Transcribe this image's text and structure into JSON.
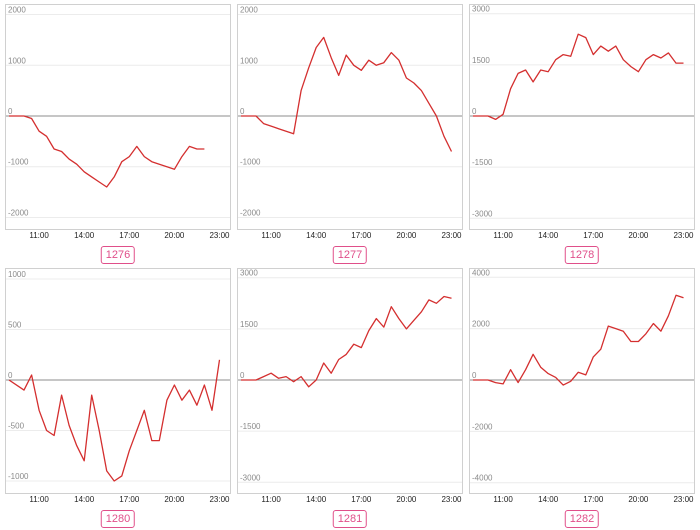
{
  "chart_data": [
    {
      "type": "line",
      "label": "1276",
      "yticks": [
        2000,
        1000,
        0,
        -1000,
        -2000
      ],
      "ylim": [
        -2050,
        2050
      ],
      "xticks": [
        "11:00",
        "14:00",
        "17:00",
        "20:00",
        "23:00"
      ],
      "x": [
        "09:00",
        "10:00",
        "10:30",
        "11:00",
        "11:30",
        "12:00",
        "12:30",
        "13:00",
        "13:30",
        "14:00",
        "14:30",
        "15:00",
        "15:30",
        "16:00",
        "16:30",
        "17:00",
        "17:30",
        "18:00",
        "18:30",
        "19:00",
        "19:30",
        "20:00",
        "20:30",
        "21:00",
        "21:30",
        "22:00"
      ],
      "series": [
        {
          "values": [
            0,
            0,
            -50,
            -300,
            -400,
            -650,
            -700,
            -850,
            -950,
            -1100,
            -1200,
            -1300,
            -1400,
            -1200,
            -900,
            -800,
            -600,
            -800,
            -900,
            -950,
            -1000,
            -1050,
            -800,
            -600,
            -650,
            -650
          ]
        }
      ]
    },
    {
      "type": "line",
      "label": "1277",
      "yticks": [
        2000,
        1000,
        0,
        -1000,
        -2000
      ],
      "ylim": [
        -2050,
        2050
      ],
      "xticks": [
        "11:00",
        "14:00",
        "17:00",
        "20:00",
        "23:00"
      ],
      "x": [
        "09:00",
        "10:00",
        "10:30",
        "11:00",
        "11:30",
        "12:00",
        "12:30",
        "13:00",
        "13:30",
        "14:00",
        "14:30",
        "15:00",
        "15:30",
        "16:00",
        "16:30",
        "17:00",
        "17:30",
        "18:00",
        "18:30",
        "19:00",
        "19:30",
        "20:00",
        "20:30",
        "21:00",
        "21:30",
        "22:00",
        "22:30",
        "23:00"
      ],
      "series": [
        {
          "values": [
            0,
            0,
            -150,
            -200,
            -250,
            -300,
            -350,
            500,
            950,
            1350,
            1550,
            1150,
            800,
            1200,
            1000,
            900,
            1100,
            1000,
            1050,
            1250,
            1100,
            750,
            650,
            500,
            250,
            0,
            -400,
            -700
          ]
        }
      ]
    },
    {
      "type": "line",
      "label": "1278",
      "yticks": [
        3000,
        1500,
        0,
        -1500,
        -3000
      ],
      "ylim": [
        -3050,
        3050
      ],
      "xticks": [
        "11:00",
        "14:00",
        "17:00",
        "20:00",
        "23:00"
      ],
      "x": [
        "09:00",
        "10:00",
        "10:30",
        "11:00",
        "11:30",
        "12:00",
        "12:30",
        "13:00",
        "13:30",
        "14:00",
        "14:30",
        "15:00",
        "15:30",
        "16:00",
        "16:30",
        "17:00",
        "17:30",
        "18:00",
        "18:30",
        "19:00",
        "19:30",
        "20:00",
        "20:30",
        "21:00",
        "21:30",
        "22:00",
        "22:30",
        "23:00"
      ],
      "series": [
        {
          "values": [
            0,
            0,
            -100,
            50,
            800,
            1250,
            1350,
            1000,
            1350,
            1300,
            1650,
            1800,
            1750,
            2400,
            2300,
            1800,
            2050,
            1900,
            2050,
            1650,
            1450,
            1300,
            1650,
            1800,
            1700,
            1850,
            1550,
            1550
          ]
        }
      ]
    },
    {
      "type": "line",
      "label": "1280",
      "yticks": [
        1000,
        500,
        0,
        -500,
        -1000
      ],
      "ylim": [
        -1030,
        1030
      ],
      "xticks": [
        "11:00",
        "14:00",
        "17:00",
        "20:00",
        "23:00"
      ],
      "x": [
        "09:00",
        "10:00",
        "10:30",
        "11:00",
        "11:30",
        "12:00",
        "12:30",
        "13:00",
        "13:30",
        "14:00",
        "14:30",
        "15:00",
        "15:30",
        "16:00",
        "16:30",
        "17:00",
        "17:30",
        "18:00",
        "18:30",
        "19:00",
        "19:30",
        "20:00",
        "20:30",
        "21:00",
        "21:30",
        "22:00",
        "22:30",
        "23:00"
      ],
      "series": [
        {
          "values": [
            0,
            -100,
            50,
            -300,
            -500,
            -550,
            -150,
            -450,
            -650,
            -800,
            -150,
            -500,
            -900,
            -1000,
            -950,
            -700,
            -500,
            -300,
            -600,
            -600,
            -200,
            -50,
            -200,
            -100,
            -250,
            -50,
            -300,
            200
          ]
        }
      ]
    },
    {
      "type": "line",
      "label": "1281",
      "yticks": [
        3000,
        1500,
        0,
        -1500,
        -3000
      ],
      "ylim": [
        -3050,
        3050
      ],
      "xticks": [
        "11:00",
        "14:00",
        "17:00",
        "20:00",
        "23:00"
      ],
      "x": [
        "09:00",
        "10:00",
        "10:30",
        "11:00",
        "11:30",
        "12:00",
        "12:30",
        "13:00",
        "13:30",
        "14:00",
        "14:30",
        "15:00",
        "15:30",
        "16:00",
        "16:30",
        "17:00",
        "17:30",
        "18:00",
        "18:30",
        "19:00",
        "19:30",
        "20:00",
        "20:30",
        "21:00",
        "21:30",
        "22:00",
        "22:30",
        "23:00"
      ],
      "series": [
        {
          "values": [
            0,
            0,
            100,
            200,
            50,
            100,
            -50,
            100,
            -200,
            0,
            500,
            200,
            600,
            750,
            1050,
            950,
            1450,
            1800,
            1550,
            2150,
            1800,
            1500,
            1750,
            2000,
            2350,
            2250,
            2450,
            2400
          ]
        }
      ]
    },
    {
      "type": "line",
      "label": "1282",
      "yticks": [
        4000,
        2000,
        0,
        -2000,
        -4000
      ],
      "ylim": [
        -4050,
        4050
      ],
      "xticks": [
        "11:00",
        "14:00",
        "17:00",
        "20:00",
        "23:00"
      ],
      "x": [
        "09:00",
        "10:00",
        "10:30",
        "11:00",
        "11:30",
        "12:00",
        "12:30",
        "13:00",
        "13:30",
        "14:00",
        "14:30",
        "15:00",
        "15:30",
        "16:00",
        "16:30",
        "17:00",
        "17:30",
        "18:00",
        "18:30",
        "19:00",
        "19:30",
        "20:00",
        "20:30",
        "21:00",
        "21:30",
        "22:00",
        "22:30",
        "23:00"
      ],
      "series": [
        {
          "values": [
            0,
            0,
            -100,
            -150,
            400,
            -100,
            400,
            1000,
            500,
            250,
            100,
            -200,
            -50,
            300,
            200,
            900,
            1200,
            2100,
            2000,
            1900,
            1500,
            1500,
            1800,
            2200,
            1900,
            2500,
            3300,
            3200
          ]
        }
      ]
    }
  ]
}
